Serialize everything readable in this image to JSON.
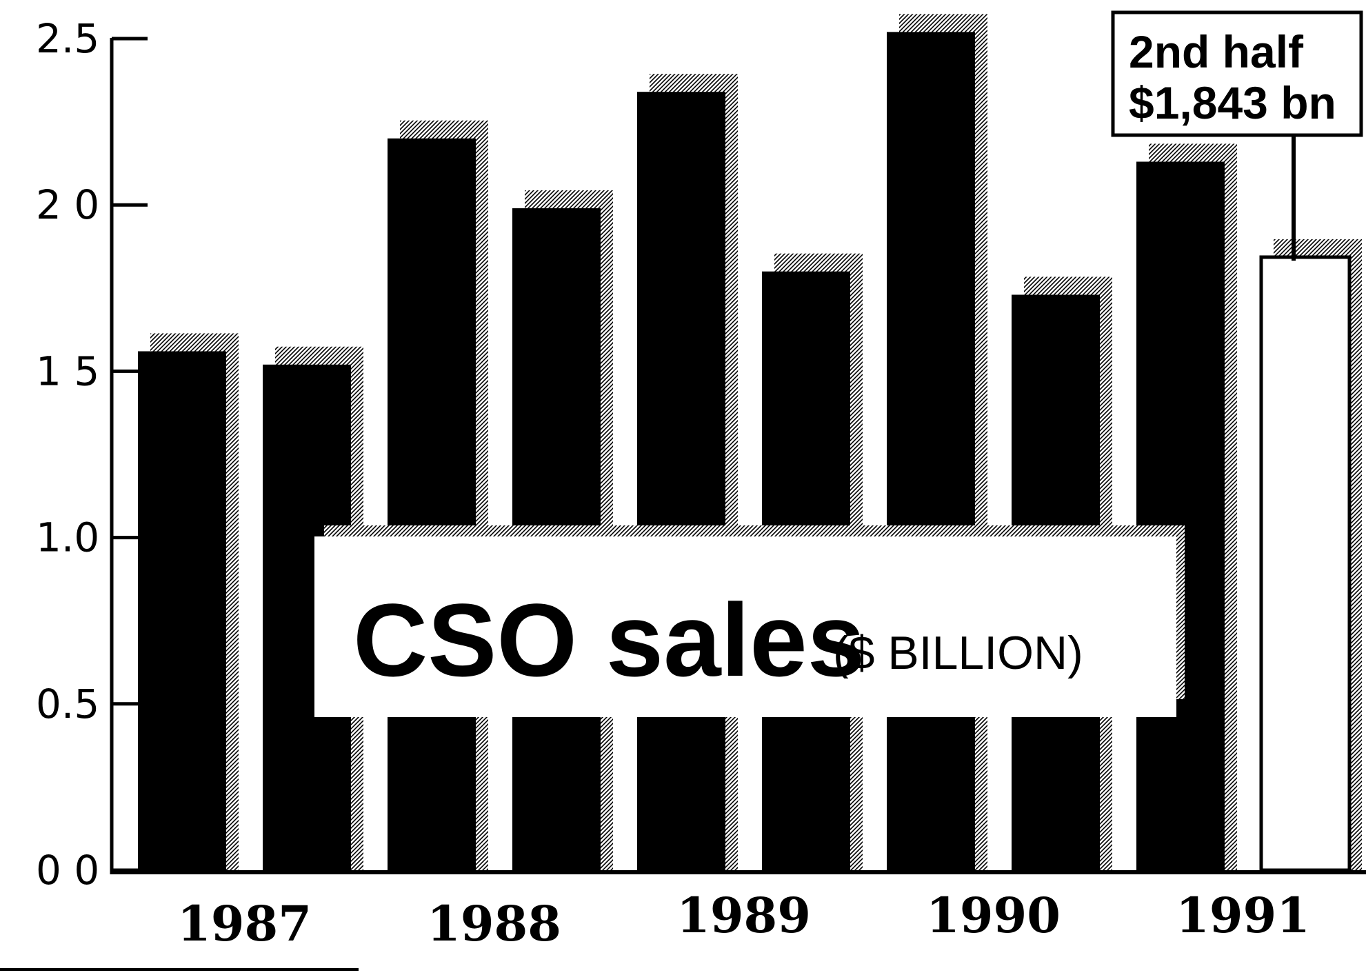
{
  "chart_data": {
    "type": "bar",
    "title": "CSO sales",
    "subtitle": "($ BILLION)",
    "categories": [
      "1987",
      "1988",
      "1989",
      "1990",
      "1991"
    ],
    "bars": [
      {
        "year": "1987",
        "half": 1,
        "value": 1.56
      },
      {
        "year": "1987",
        "half": 2,
        "value": 1.52
      },
      {
        "year": "1988",
        "half": 1,
        "value": 2.2
      },
      {
        "year": "1988",
        "half": 2,
        "value": 1.99
      },
      {
        "year": "1989",
        "half": 1,
        "value": 2.34
      },
      {
        "year": "1989",
        "half": 2,
        "value": 1.8
      },
      {
        "year": "1990",
        "half": 1,
        "value": 2.52
      },
      {
        "year": "1990",
        "half": 2,
        "value": 1.73
      },
      {
        "year": "1991",
        "half": 1,
        "value": 2.13
      },
      {
        "year": "1991",
        "half": 2,
        "value": 1.843,
        "highlight": true
      }
    ],
    "y_ticks": [
      "2.5",
      "2 0",
      "1 5",
      "1.0",
      "0.5",
      "0 0"
    ],
    "y_tick_values": [
      2.5,
      2.0,
      1.5,
      1.0,
      0.5,
      0.0
    ],
    "ylim": [
      0,
      2.5
    ],
    "grid": false,
    "legend": "none",
    "annotation": {
      "line1": "2nd half",
      "line2": "$1,843 bn"
    },
    "colors": {
      "bar": "#000000",
      "highlight_bar": "#ffffff",
      "shadow": "#9a9a9a"
    }
  }
}
